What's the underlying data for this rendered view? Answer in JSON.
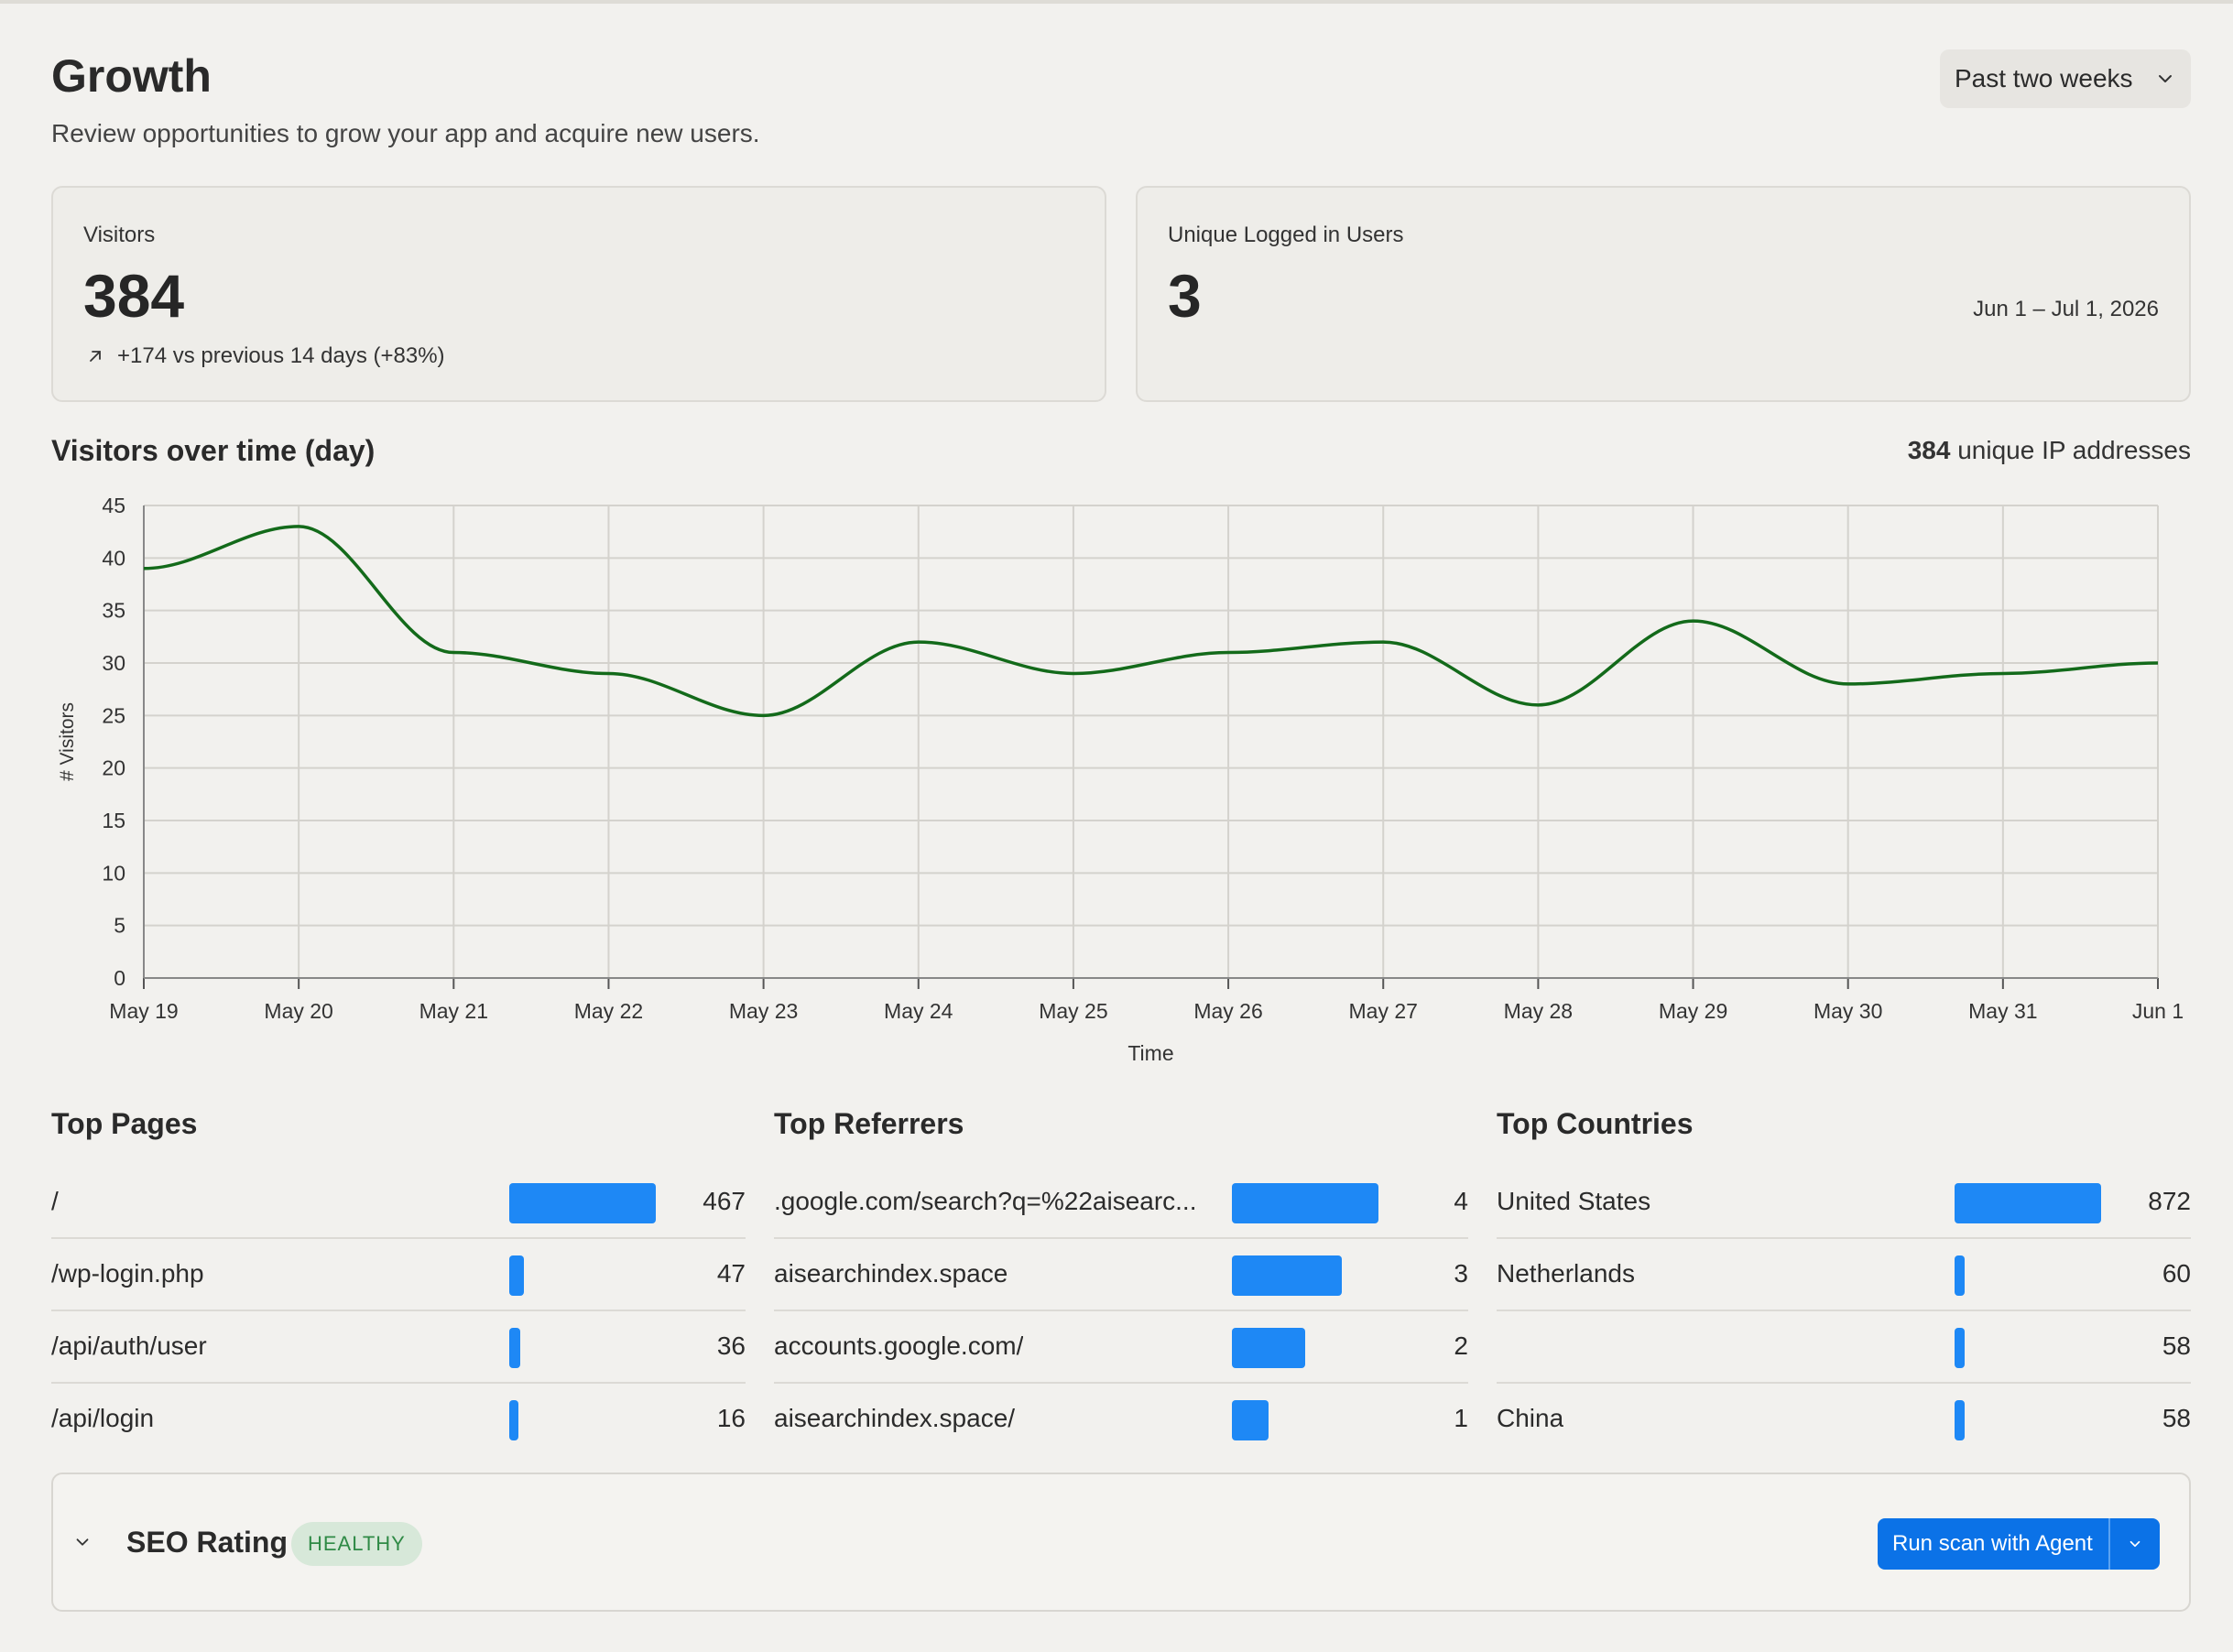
{
  "header": {
    "title": "Growth",
    "subtitle": "Review opportunities to grow your app and acquire new users.",
    "range_select": "Past two weeks"
  },
  "cards": {
    "visitors": {
      "label": "Visitors",
      "value": "384",
      "delta": "+174 vs previous 14 days (+83%)"
    },
    "users": {
      "label": "Unique Logged in Users",
      "value": "3",
      "date_range": "Jun 1 – Jul 1, 2026"
    }
  },
  "chart_section": {
    "title": "Visitors over time (day)",
    "unique_ip_count": "384",
    "unique_ip_label": " unique IP addresses"
  },
  "chart_data": {
    "type": "line",
    "title": "Visitors over time (day)",
    "xlabel": "Time",
    "ylabel": "# Visitors",
    "categories": [
      "May 19",
      "May 20",
      "May 21",
      "May 22",
      "May 23",
      "May 24",
      "May 25",
      "May 26",
      "May 27",
      "May 28",
      "May 29",
      "May 30",
      "May 31",
      "Jun 1"
    ],
    "series": [
      {
        "values": [
          39,
          43,
          31,
          29,
          25,
          32,
          29,
          31,
          32,
          26,
          34,
          28,
          29,
          30
        ]
      }
    ],
    "ylim": [
      0,
      45
    ],
    "yticks": [
      0,
      5,
      10,
      15,
      20,
      25,
      30,
      35,
      40,
      45
    ],
    "grid": true,
    "line_color": "#136a1a"
  },
  "top_pages": {
    "title": "Top Pages",
    "max": 467,
    "rows": [
      {
        "name": "/",
        "count": "467",
        "value": 467
      },
      {
        "name": "/wp-login.php",
        "count": "47",
        "value": 47
      },
      {
        "name": "/api/auth/user",
        "count": "36",
        "value": 36
      },
      {
        "name": "/api/login",
        "count": "16",
        "value": 16
      }
    ]
  },
  "top_referrers": {
    "title": "Top Referrers",
    "max": 4,
    "rows": [
      {
        "name": ".google.com/search?q=%22aisearc...",
        "count": "4",
        "value": 4
      },
      {
        "name": "aisearchindex.space",
        "count": "3",
        "value": 3
      },
      {
        "name": "accounts.google.com/",
        "count": "2",
        "value": 2
      },
      {
        "name": "aisearchindex.space/",
        "count": "1",
        "value": 1
      }
    ]
  },
  "top_countries": {
    "title": "Top Countries",
    "max": 872,
    "rows": [
      {
        "name": "United States",
        "count": "872",
        "value": 872
      },
      {
        "name": "Netherlands",
        "count": "60",
        "value": 60
      },
      {
        "name": "",
        "count": "58",
        "value": 58
      },
      {
        "name": "China",
        "count": "58",
        "value": 58
      }
    ]
  },
  "seo": {
    "title": "SEO Rating",
    "badge": "HEALTHY",
    "scan_button": "Run scan with Agent"
  },
  "colors": {
    "bar": "#1e88f5",
    "accent_button": "#0b72e7",
    "healthy_badge_bg": "#d7e8d9",
    "healthy_badge_text": "#2f8a46"
  },
  "icons": [
    "chevron-down-icon",
    "arrow-up-right-icon"
  ]
}
